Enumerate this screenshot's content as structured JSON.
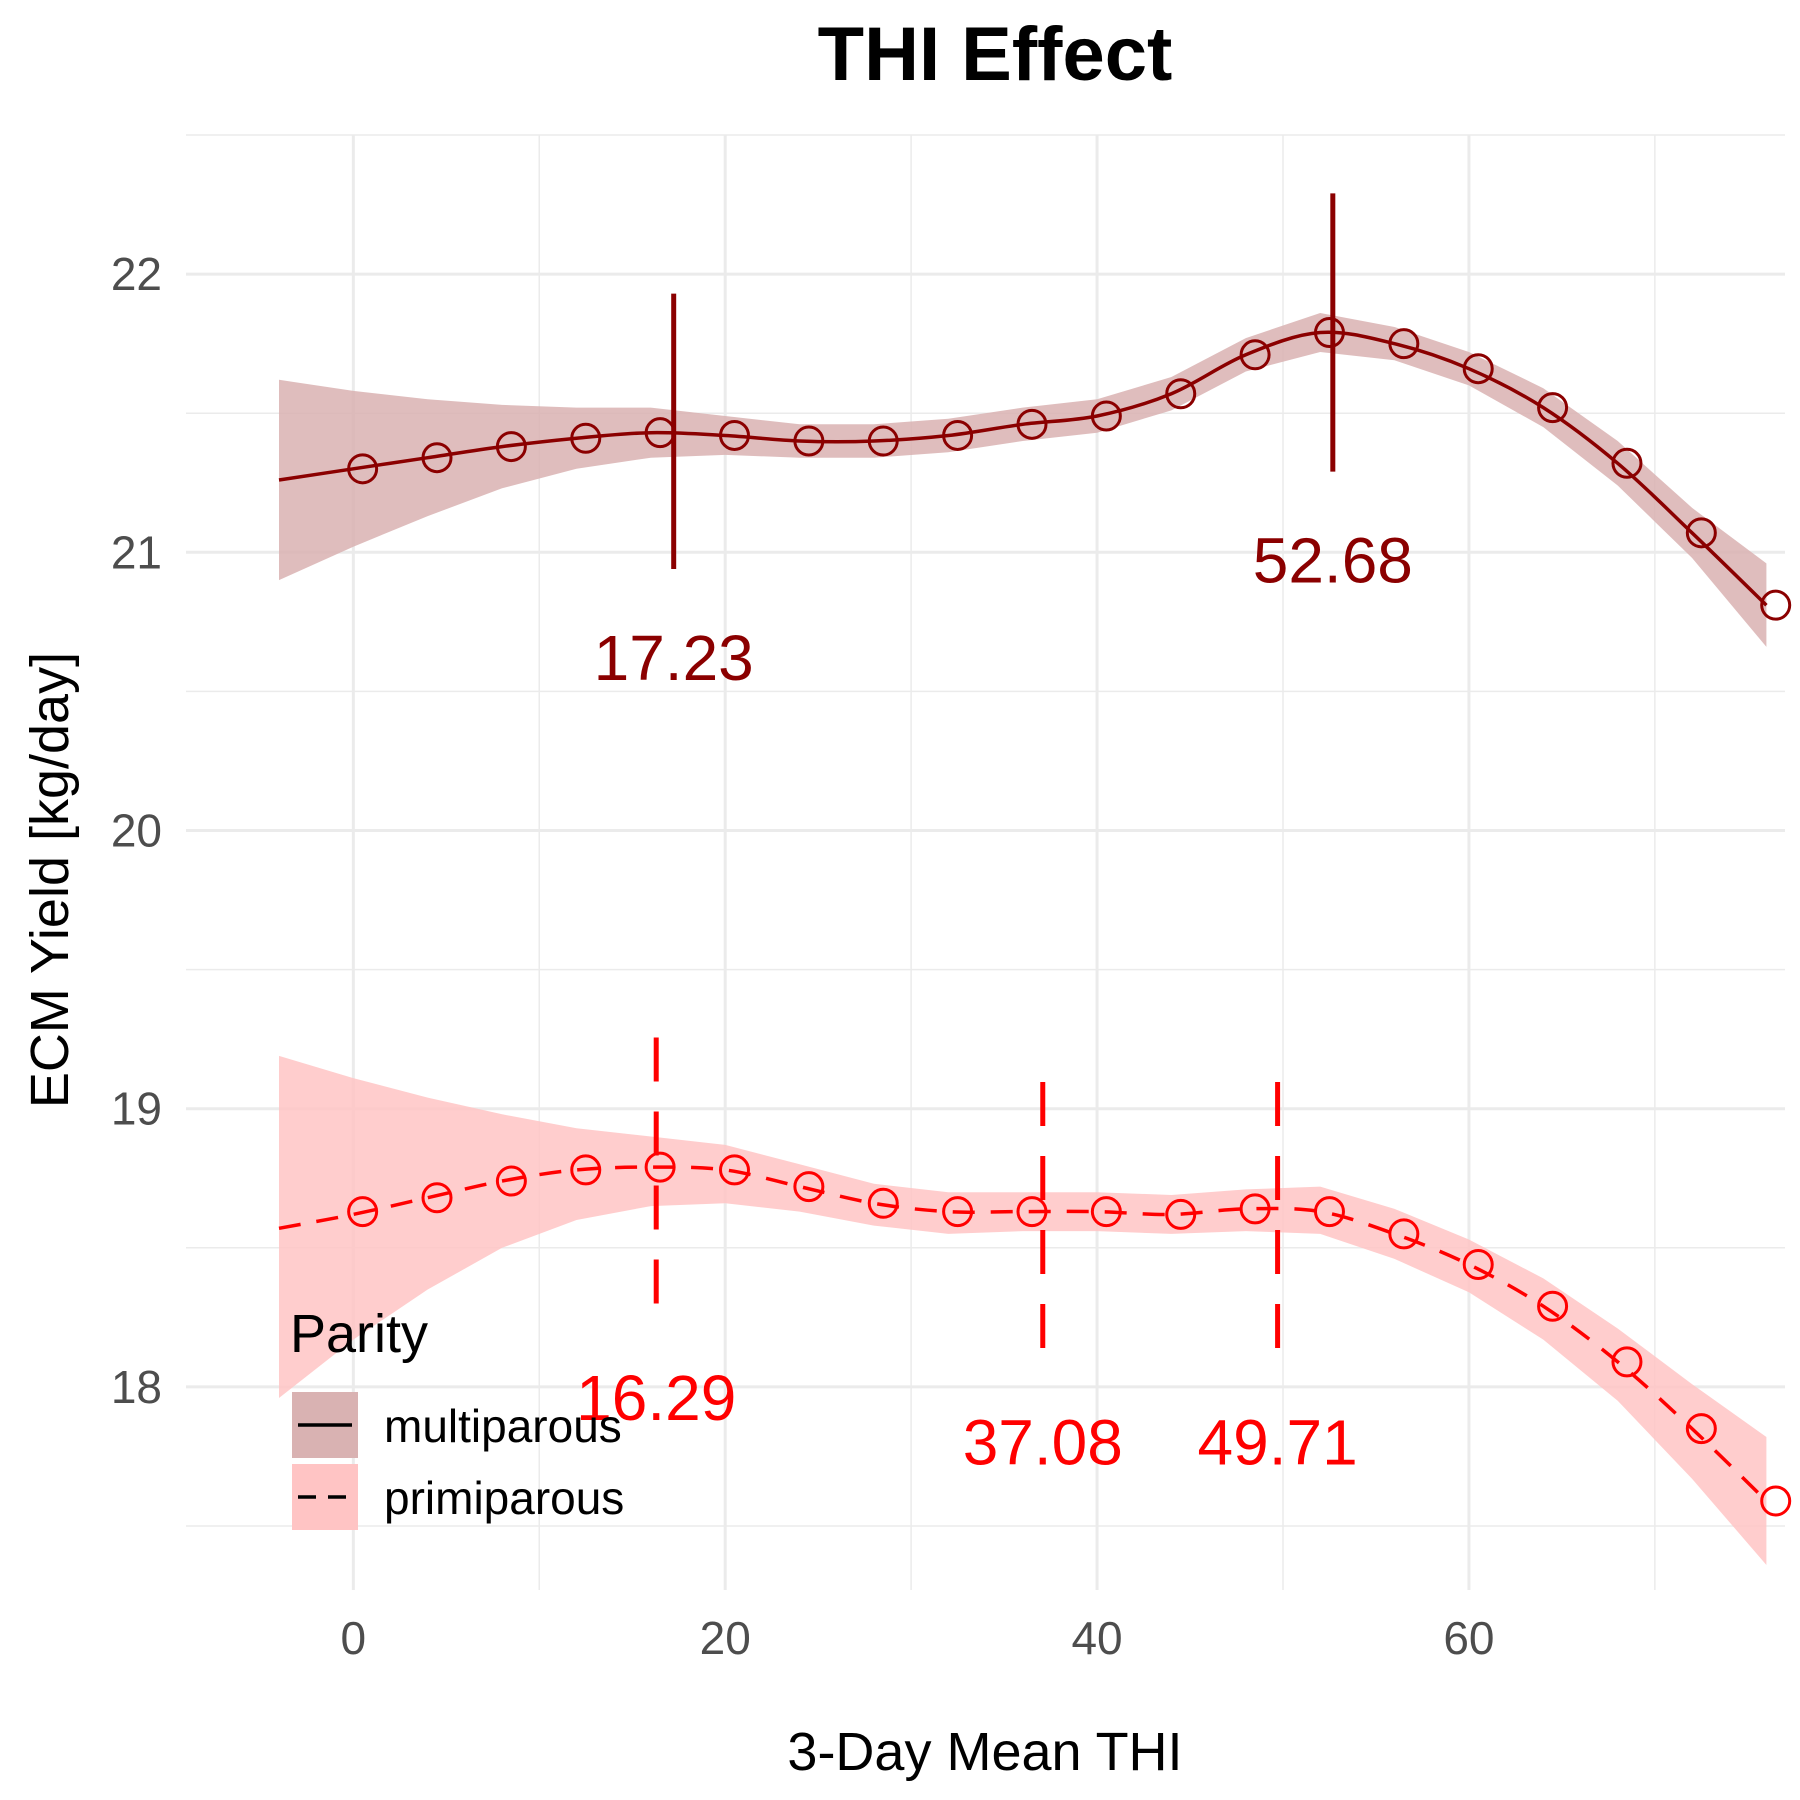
{
  "chart_data": {
    "type": "line",
    "title": "THI Effect",
    "xlabel": "3-Day Mean THI",
    "ylabel": "ECM Yield [kg/day]",
    "xlim": [
      -9,
      77
    ],
    "ylim": [
      17.27,
      22.5
    ],
    "x_ticks": [
      0,
      20,
      40,
      60
    ],
    "y_ticks": [
      18,
      19,
      20,
      21,
      22
    ],
    "grid": true,
    "legend": {
      "title": "Parity",
      "position": "bottom-left",
      "entries": [
        "multiparous",
        "primiparous"
      ]
    },
    "colors": {
      "multiparous": "#8b0000",
      "primiparous": "#ff0000",
      "multiparous_band": "#d9b2b2",
      "primiparous_band": "#ffc4c4",
      "grid": "#ebebeb"
    },
    "series": [
      {
        "name": "multiparous",
        "linestyle": "solid",
        "curve": {
          "x": [
            -4,
            0,
            4,
            8,
            12,
            16,
            20,
            24,
            28,
            32,
            36,
            40,
            44,
            48,
            52,
            56,
            60,
            64,
            68,
            72,
            76
          ],
          "y": [
            21.26,
            21.3,
            21.34,
            21.38,
            21.41,
            21.43,
            21.42,
            21.4,
            21.4,
            21.42,
            21.46,
            21.49,
            21.57,
            21.71,
            21.79,
            21.75,
            21.66,
            21.52,
            21.32,
            21.07,
            20.81
          ]
        },
        "band": {
          "lower": [
            20.9,
            21.02,
            21.13,
            21.23,
            21.3,
            21.34,
            21.35,
            21.34,
            21.34,
            21.36,
            21.4,
            21.43,
            21.51,
            21.65,
            21.72,
            21.69,
            21.6,
            21.45,
            21.24,
            20.98,
            20.66
          ],
          "upper": [
            21.62,
            21.58,
            21.55,
            21.53,
            21.52,
            21.52,
            21.49,
            21.46,
            21.46,
            21.48,
            21.52,
            21.55,
            21.63,
            21.77,
            21.86,
            21.81,
            21.72,
            21.59,
            21.4,
            21.16,
            20.96
          ]
        },
        "points": {
          "x": [
            0.5,
            4.5,
            8.5,
            12.5,
            16.5,
            20.5,
            24.5,
            28.5,
            32.5,
            36.5,
            40.5,
            44.5,
            48.5,
            52.5,
            56.5,
            60.5,
            64.5,
            68.5,
            72.5,
            76.5
          ],
          "y": [
            21.3,
            21.34,
            21.38,
            21.41,
            21.43,
            21.42,
            21.4,
            21.4,
            21.42,
            21.46,
            21.49,
            21.57,
            21.71,
            21.79,
            21.75,
            21.66,
            21.52,
            21.32,
            21.07,
            20.81
          ]
        },
        "markers": [
          {
            "x": 17.23,
            "ymin": 20.94,
            "ymax": 21.93,
            "label": "17.23",
            "label_y": 20.62
          },
          {
            "x": 52.68,
            "ymin": 21.29,
            "ymax": 22.29,
            "label": "52.68",
            "label_y": 20.97
          }
        ]
      },
      {
        "name": "primiparous",
        "linestyle": "dashed",
        "curve": {
          "x": [
            -4,
            0,
            4,
            8,
            12,
            16,
            20,
            24,
            28,
            32,
            36,
            40,
            44,
            48,
            52,
            56,
            60,
            64,
            68,
            72,
            76
          ],
          "y": [
            18.57,
            18.62,
            18.68,
            18.74,
            18.78,
            18.79,
            18.78,
            18.72,
            18.66,
            18.63,
            18.63,
            18.63,
            18.62,
            18.64,
            18.63,
            18.55,
            18.44,
            18.29,
            18.09,
            17.85,
            17.59
          ]
        },
        "band": {
          "lower": [
            17.96,
            18.17,
            18.35,
            18.5,
            18.6,
            18.65,
            18.66,
            18.63,
            18.58,
            18.55,
            18.56,
            18.56,
            18.55,
            18.56,
            18.55,
            18.46,
            18.34,
            18.17,
            17.95,
            17.67,
            17.36
          ],
          "upper": [
            19.19,
            19.11,
            19.04,
            18.98,
            18.93,
            18.9,
            18.87,
            18.8,
            18.73,
            18.7,
            18.7,
            18.7,
            18.69,
            18.71,
            18.72,
            18.64,
            18.53,
            18.39,
            18.21,
            18.01,
            17.82
          ]
        },
        "points": {
          "x": [
            0.5,
            4.5,
            8.5,
            12.5,
            16.5,
            20.5,
            24.5,
            28.5,
            32.5,
            36.5,
            40.5,
            44.5,
            48.5,
            52.5,
            56.5,
            60.5,
            64.5,
            68.5,
            72.5,
            76.5
          ],
          "y": [
            18.63,
            18.68,
            18.74,
            18.78,
            18.79,
            18.78,
            18.72,
            18.66,
            18.63,
            18.63,
            18.63,
            18.62,
            18.64,
            18.63,
            18.55,
            18.44,
            18.29,
            18.09,
            17.85,
            17.59
          ]
        },
        "markers": [
          {
            "x": 16.29,
            "ymin": 18.3,
            "ymax": 19.26,
            "label": "16.29",
            "label_y": 17.96
          },
          {
            "x": 37.08,
            "ymin": 18.14,
            "ymax": 19.1,
            "label": "37.08",
            "label_y": 17.8
          },
          {
            "x": 49.71,
            "ymin": 18.14,
            "ymax": 19.1,
            "label": "49.71",
            "label_y": 17.8
          }
        ]
      }
    ]
  }
}
